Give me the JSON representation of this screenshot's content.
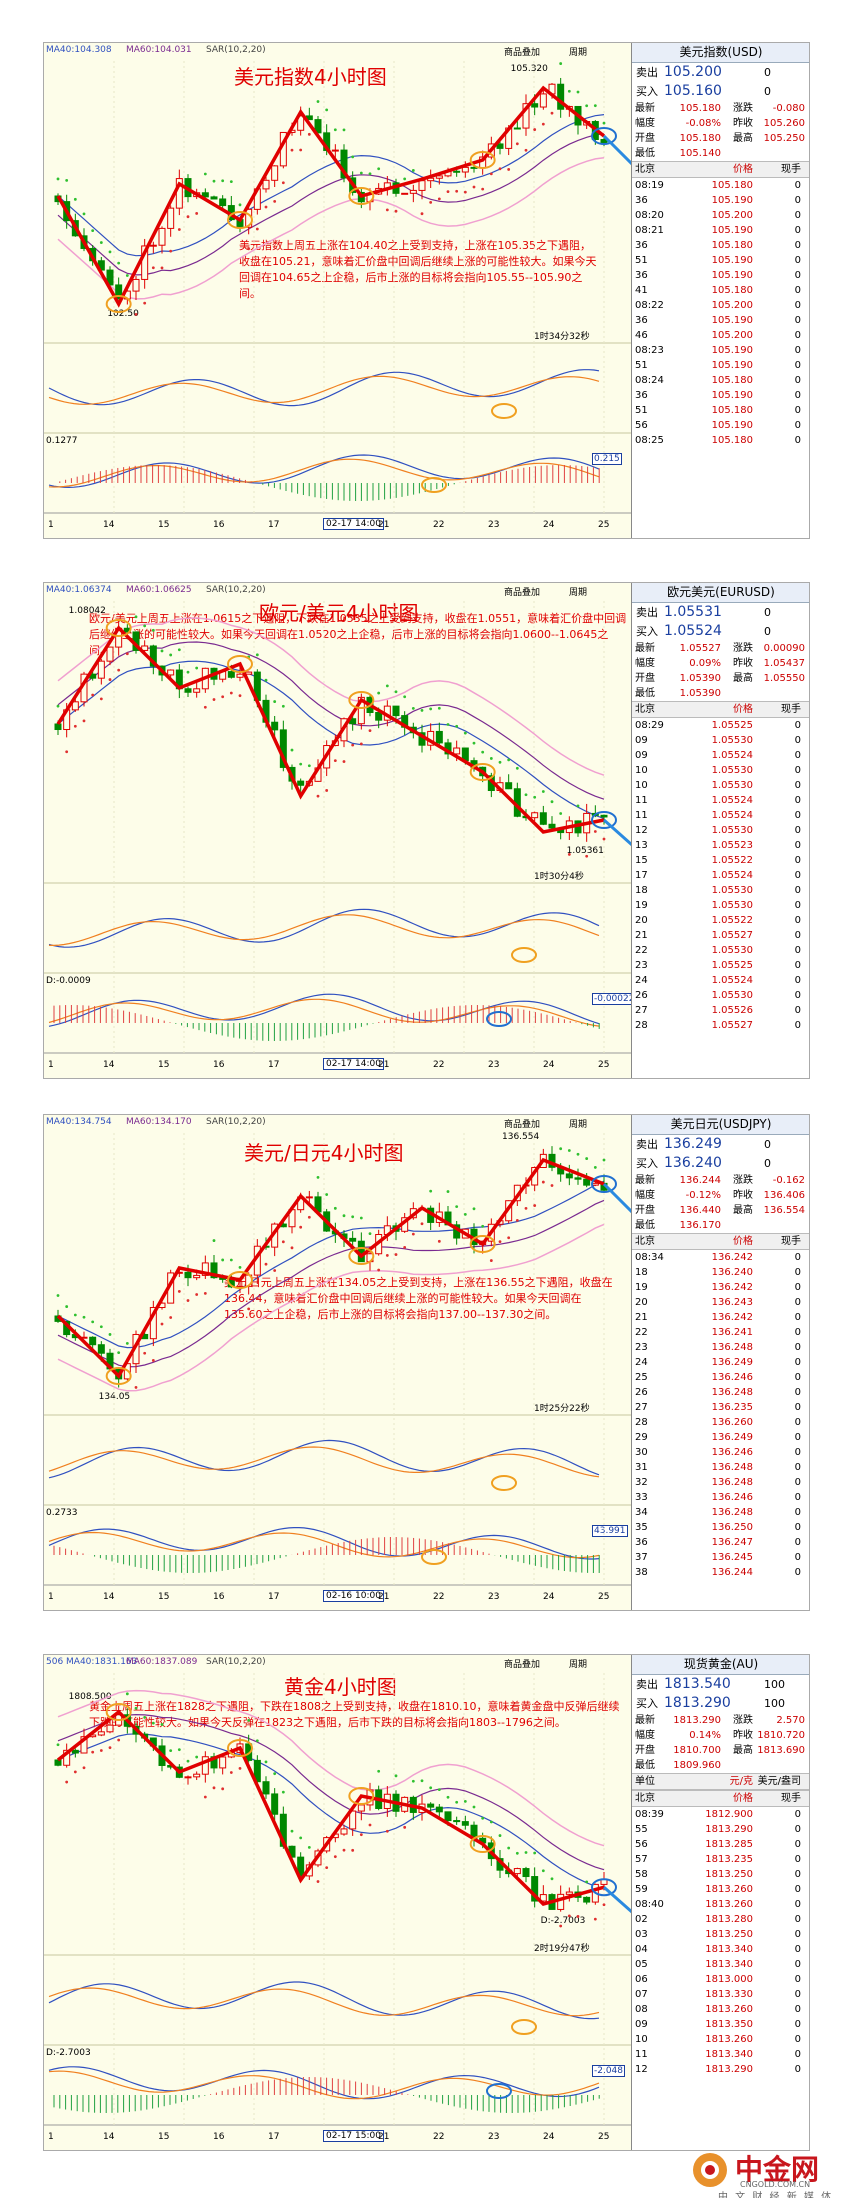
{
  "panels": [
    {
      "indicators": [
        "MA40:104.308",
        "MA60:104.031",
        "SAR(10,2,20)"
      ],
      "buttons": [
        "商品叠加",
        "周期"
      ],
      "title": "美元指数4小时图",
      "note": "美元指数上周五上涨在104.40之上受到支持，上涨在105.35之下遇阻，收盘在105.21，意味着汇价盘中回调后继续上涨的可能性较大。如果今天回调在104.65之上企稳，后市上涨的目标将会指向105.55--105.90之间。",
      "price_labels": [
        "105.320",
        "102.50"
      ],
      "countdown": "1时34分32秒",
      "sub_labels": [
        "0.1277",
        "0.215"
      ],
      "x_labels": [
        "1",
        "14",
        "15",
        "16",
        "17",
        "02-17 14:00",
        "21",
        "22",
        "23",
        "24",
        "25"
      ],
      "quote": {
        "name": "美元指数(USD)",
        "sell": [
          "卖出",
          "105.200",
          "0"
        ],
        "buy": [
          "买入",
          "105.160",
          "0"
        ],
        "stats": [
          [
            "最新",
            "105.180",
            "涨跌",
            "-0.080"
          ],
          [
            "幅度",
            "-0.08%",
            "昨收",
            "105.260"
          ],
          [
            "开盘",
            "105.180",
            "最高",
            "105.250"
          ],
          [
            "最低",
            "105.140"
          ]
        ],
        "columns": [
          "北京",
          "价格",
          "现手"
        ],
        "ticks": [
          [
            "08:19",
            "105.180",
            "0"
          ],
          [
            "36",
            "105.190",
            "0"
          ],
          [
            "08:20",
            "105.200",
            "0"
          ],
          [
            "08:21",
            "105.190",
            "0"
          ],
          [
            "36",
            "105.180",
            "0"
          ],
          [
            "51",
            "105.190",
            "0"
          ],
          [
            "36",
            "105.190",
            "0"
          ],
          [
            "41",
            "105.180",
            "0"
          ],
          [
            "08:22",
            "105.200",
            "0"
          ],
          [
            "36",
            "105.190",
            "0"
          ],
          [
            "46",
            "105.200",
            "0"
          ],
          [
            "08:23",
            "105.190",
            "0"
          ],
          [
            "51",
            "105.190",
            "0"
          ],
          [
            "08:24",
            "105.180",
            "0"
          ],
          [
            "36",
            "105.190",
            "0"
          ],
          [
            "51",
            "105.180",
            "0"
          ],
          [
            "56",
            "105.190",
            "0"
          ],
          [
            "08:25",
            "105.180",
            "0"
          ]
        ]
      }
    },
    {
      "indicators": [
        "MA40:1.06374",
        "MA60:1.06625",
        "SAR(10,2,20)"
      ],
      "buttons": [
        "商品叠加",
        "周期"
      ],
      "title": "欧元/美元4小时图",
      "note": "欧元/美元上周五上涨在1.0615之下遇阻，下跌在1.0535之上受到支持，收盘在1.0551，意味着汇价盘中回调后继续上涨的可能性较大。如果今天回调在1.0520之上企稳，后市上涨的目标将会指向1.0600--1.0645之间。",
      "price_labels": [
        "1.08042",
        "1.05361"
      ],
      "countdown": "1时30分4秒",
      "sub_labels": [
        "D:-0.0009",
        "-0.00022"
      ],
      "x_labels": [
        "1",
        "14",
        "15",
        "16",
        "17",
        "02-17 14:00",
        "21",
        "22",
        "23",
        "24",
        "25"
      ],
      "quote": {
        "name": "欧元美元(EURUSD)",
        "sell": [
          "卖出",
          "1.05531",
          "0"
        ],
        "buy": [
          "买入",
          "1.05524",
          "0"
        ],
        "stats": [
          [
            "最新",
            "1.05527",
            "涨跌",
            "0.00090"
          ],
          [
            "幅度",
            "0.09%",
            "昨收",
            "1.05437"
          ],
          [
            "开盘",
            "1.05390",
            "最高",
            "1.05550"
          ],
          [
            "最低",
            "1.05390"
          ]
        ],
        "columns": [
          "北京",
          "价格",
          "现手"
        ],
        "ticks": [
          [
            "08:29",
            "1.05525",
            "0"
          ],
          [
            "09",
            "1.05530",
            "0"
          ],
          [
            "09",
            "1.05524",
            "0"
          ],
          [
            "10",
            "1.05530",
            "0"
          ],
          [
            "10",
            "1.05530",
            "0"
          ],
          [
            "11",
            "1.05524",
            "0"
          ],
          [
            "11",
            "1.05524",
            "0"
          ],
          [
            "12",
            "1.05530",
            "0"
          ],
          [
            "13",
            "1.05523",
            "0"
          ],
          [
            "15",
            "1.05522",
            "0"
          ],
          [
            "17",
            "1.05524",
            "0"
          ],
          [
            "18",
            "1.05530",
            "0"
          ],
          [
            "19",
            "1.05530",
            "0"
          ],
          [
            "20",
            "1.05522",
            "0"
          ],
          [
            "21",
            "1.05527",
            "0"
          ],
          [
            "22",
            "1.05530",
            "0"
          ],
          [
            "23",
            "1.05525",
            "0"
          ],
          [
            "24",
            "1.05524",
            "0"
          ],
          [
            "26",
            "1.05530",
            "0"
          ],
          [
            "27",
            "1.05526",
            "0"
          ],
          [
            "28",
            "1.05527",
            "0"
          ]
        ]
      }
    },
    {
      "indicators": [
        "MA40:134.754",
        "MA60:134.170",
        "SAR(10,2,20)"
      ],
      "buttons": [
        "商品叠加",
        "周期"
      ],
      "title": "美元/日元4小时图",
      "note": "美元/日元上周五上涨在134.05之上受到支持，上涨在136.55之下遇阻，收盘在136.44，意味着汇价盘中回调后继续上涨的可能性较大。如果今天回调在135.60之上企稳，后市上涨的目标将会指向137.00--137.30之间。",
      "price_labels": [
        "136.554",
        "134.05"
      ],
      "countdown": "1时25分22秒",
      "sub_labels": [
        "0.2733",
        "43.991"
      ],
      "x_labels": [
        "1",
        "14",
        "15",
        "16",
        "17",
        "02-16 10:00",
        "21",
        "22",
        "23",
        "24",
        "25"
      ],
      "quote": {
        "name": "美元日元(USDJPY)",
        "sell": [
          "卖出",
          "136.249",
          "0"
        ],
        "buy": [
          "买入",
          "136.240",
          "0"
        ],
        "stats": [
          [
            "最新",
            "136.244",
            "涨跌",
            "-0.162"
          ],
          [
            "幅度",
            "-0.12%",
            "昨收",
            "136.406"
          ],
          [
            "开盘",
            "136.440",
            "最高",
            "136.554"
          ],
          [
            "最低",
            "136.170"
          ]
        ],
        "columns": [
          "北京",
          "价格",
          "现手"
        ],
        "ticks": [
          [
            "08:34",
            "136.242",
            "0"
          ],
          [
            "18",
            "136.240",
            "0"
          ],
          [
            "19",
            "136.242",
            "0"
          ],
          [
            "20",
            "136.243",
            "0"
          ],
          [
            "21",
            "136.242",
            "0"
          ],
          [
            "22",
            "136.241",
            "0"
          ],
          [
            "23",
            "136.248",
            "0"
          ],
          [
            "24",
            "136.249",
            "0"
          ],
          [
            "25",
            "136.246",
            "0"
          ],
          [
            "26",
            "136.248",
            "0"
          ],
          [
            "27",
            "136.235",
            "0"
          ],
          [
            "28",
            "136.260",
            "0"
          ],
          [
            "29",
            "136.249",
            "0"
          ],
          [
            "30",
            "136.246",
            "0"
          ],
          [
            "31",
            "136.248",
            "0"
          ],
          [
            "32",
            "136.248",
            "0"
          ],
          [
            "33",
            "136.246",
            "0"
          ],
          [
            "34",
            "136.248",
            "0"
          ],
          [
            "35",
            "136.250",
            "0"
          ],
          [
            "36",
            "136.247",
            "0"
          ],
          [
            "37",
            "136.245",
            "0"
          ],
          [
            "38",
            "136.244",
            "0"
          ]
        ]
      }
    },
    {
      "indicators": [
        "506 MA40:1831.163",
        "MA60:1837.089",
        "SAR(10,2,20)"
      ],
      "buttons": [
        "商品叠加",
        "周期"
      ],
      "title": "黄金4小时图",
      "note": "黄金上周五上涨在1828之下遇阻，下跌在1808之上受到支持，收盘在1810.10，意味着黄金盘中反弹后继续下跌的可能性较大。如果今天反弹在1823之下遇阻，后市下跌的目标将会指向1803--1796之间。",
      "price_labels": [
        "1808.500",
        "D:-2.7003"
      ],
      "countdown": "2时19分47秒",
      "sub_labels": [
        "D:-2.7003",
        "-2.048"
      ],
      "x_labels": [
        "1",
        "14",
        "15",
        "16",
        "17",
        "02-17 15:00",
        "21",
        "22",
        "23",
        "24",
        "25"
      ],
      "quote": {
        "name": "现货黄金(AU)",
        "sell": [
          "卖出",
          "1813.540",
          "100"
        ],
        "buy": [
          "买入",
          "1813.290",
          "100"
        ],
        "stats": [
          [
            "最新",
            "1813.290",
            "涨跌",
            "2.570"
          ],
          [
            "幅度",
            "0.14%",
            "昨收",
            "1810.720"
          ],
          [
            "开盘",
            "1810.700",
            "最高",
            "1813.690"
          ],
          [
            "最低",
            "1809.960"
          ]
        ],
        "unit": [
          "单位",
          "元/克",
          "美元/盎司"
        ],
        "columns": [
          "北京",
          "价格",
          "现手"
        ],
        "ticks": [
          [
            "08:39",
            "1812.900",
            "0"
          ],
          [
            "55",
            "1813.290",
            "0"
          ],
          [
            "56",
            "1813.285",
            "0"
          ],
          [
            "57",
            "1813.235",
            "0"
          ],
          [
            "58",
            "1813.250",
            "0"
          ],
          [
            "59",
            "1813.260",
            "0"
          ],
          [
            "08:40",
            "1813.260",
            "0"
          ],
          [
            "02",
            "1813.280",
            "0"
          ],
          [
            "03",
            "1813.250",
            "0"
          ],
          [
            "04",
            "1813.340",
            "0"
          ],
          [
            "05",
            "1813.340",
            "0"
          ],
          [
            "06",
            "1813.000",
            "0"
          ],
          [
            "07",
            "1813.330",
            "0"
          ],
          [
            "08",
            "1813.260",
            "0"
          ],
          [
            "09",
            "1813.350",
            "0"
          ],
          [
            "10",
            "1813.260",
            "0"
          ],
          [
            "11",
            "1813.340",
            "0"
          ],
          [
            "12",
            "1813.290",
            "0"
          ]
        ]
      }
    }
  ],
  "footer": {
    "logo": "中金网",
    "domain": "CNGOLD.COM.CN",
    "slogan": "中 文 财 经 新 媒 体"
  }
}
